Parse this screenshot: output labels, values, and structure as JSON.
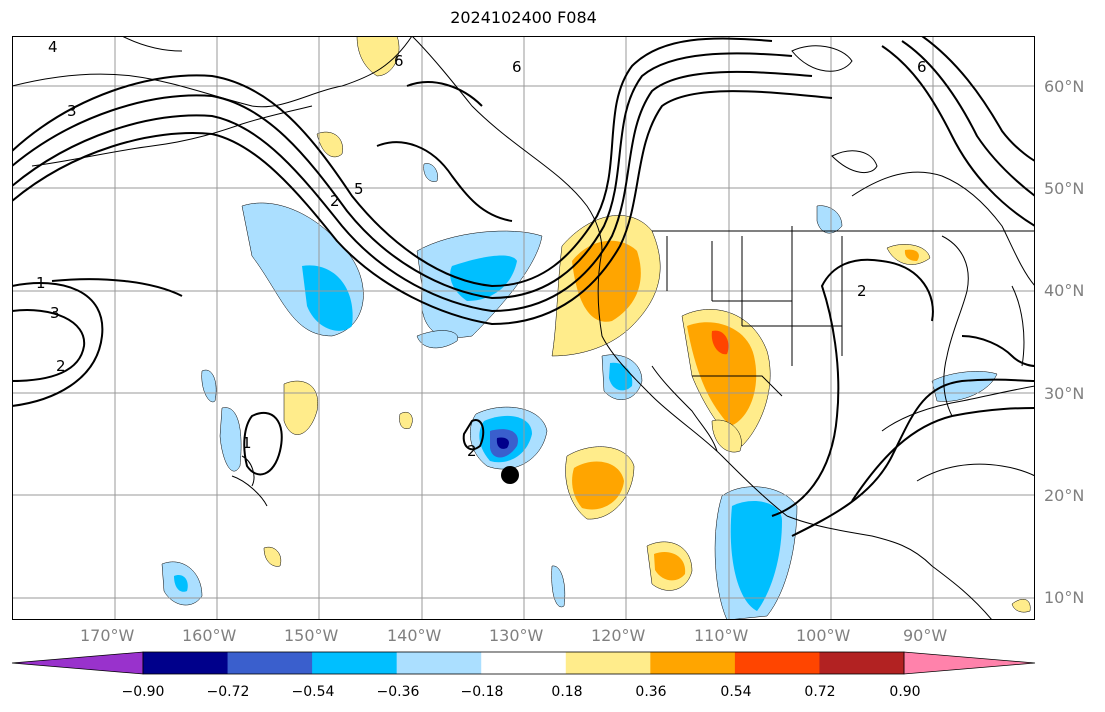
{
  "title": "2024102400 F084",
  "lat_labels": [
    "60°N",
    "50°N",
    "40°N",
    "30°N",
    "20°N",
    "10°N"
  ],
  "lon_labels": [
    "170°W",
    "160°W",
    "150°W",
    "140°W",
    "130°W",
    "120°W",
    "110°W",
    "100°W",
    "90°W"
  ],
  "contour_labels": [
    "4",
    "6",
    "6",
    "6",
    "3",
    "5",
    "2",
    "2",
    "1",
    "3",
    "2",
    "1",
    "2"
  ],
  "colorbar": {
    "ticks": [
      "−0.90",
      "−0.72",
      "−0.54",
      "−0.36",
      "−0.18",
      "0.18",
      "0.36",
      "0.54",
      "0.72",
      "0.90"
    ],
    "colors": [
      "#9932cc",
      "#00008b",
      "#3a5fcd",
      "#00bfff",
      "#abdfff",
      "#ffffff",
      "#ffec8b",
      "#ffa500",
      "#ff4500",
      "#b22222",
      "#ff82ab"
    ]
  },
  "colors": {
    "grid": "#999999",
    "coast": "#000000",
    "ocean": "#ffffff"
  }
}
